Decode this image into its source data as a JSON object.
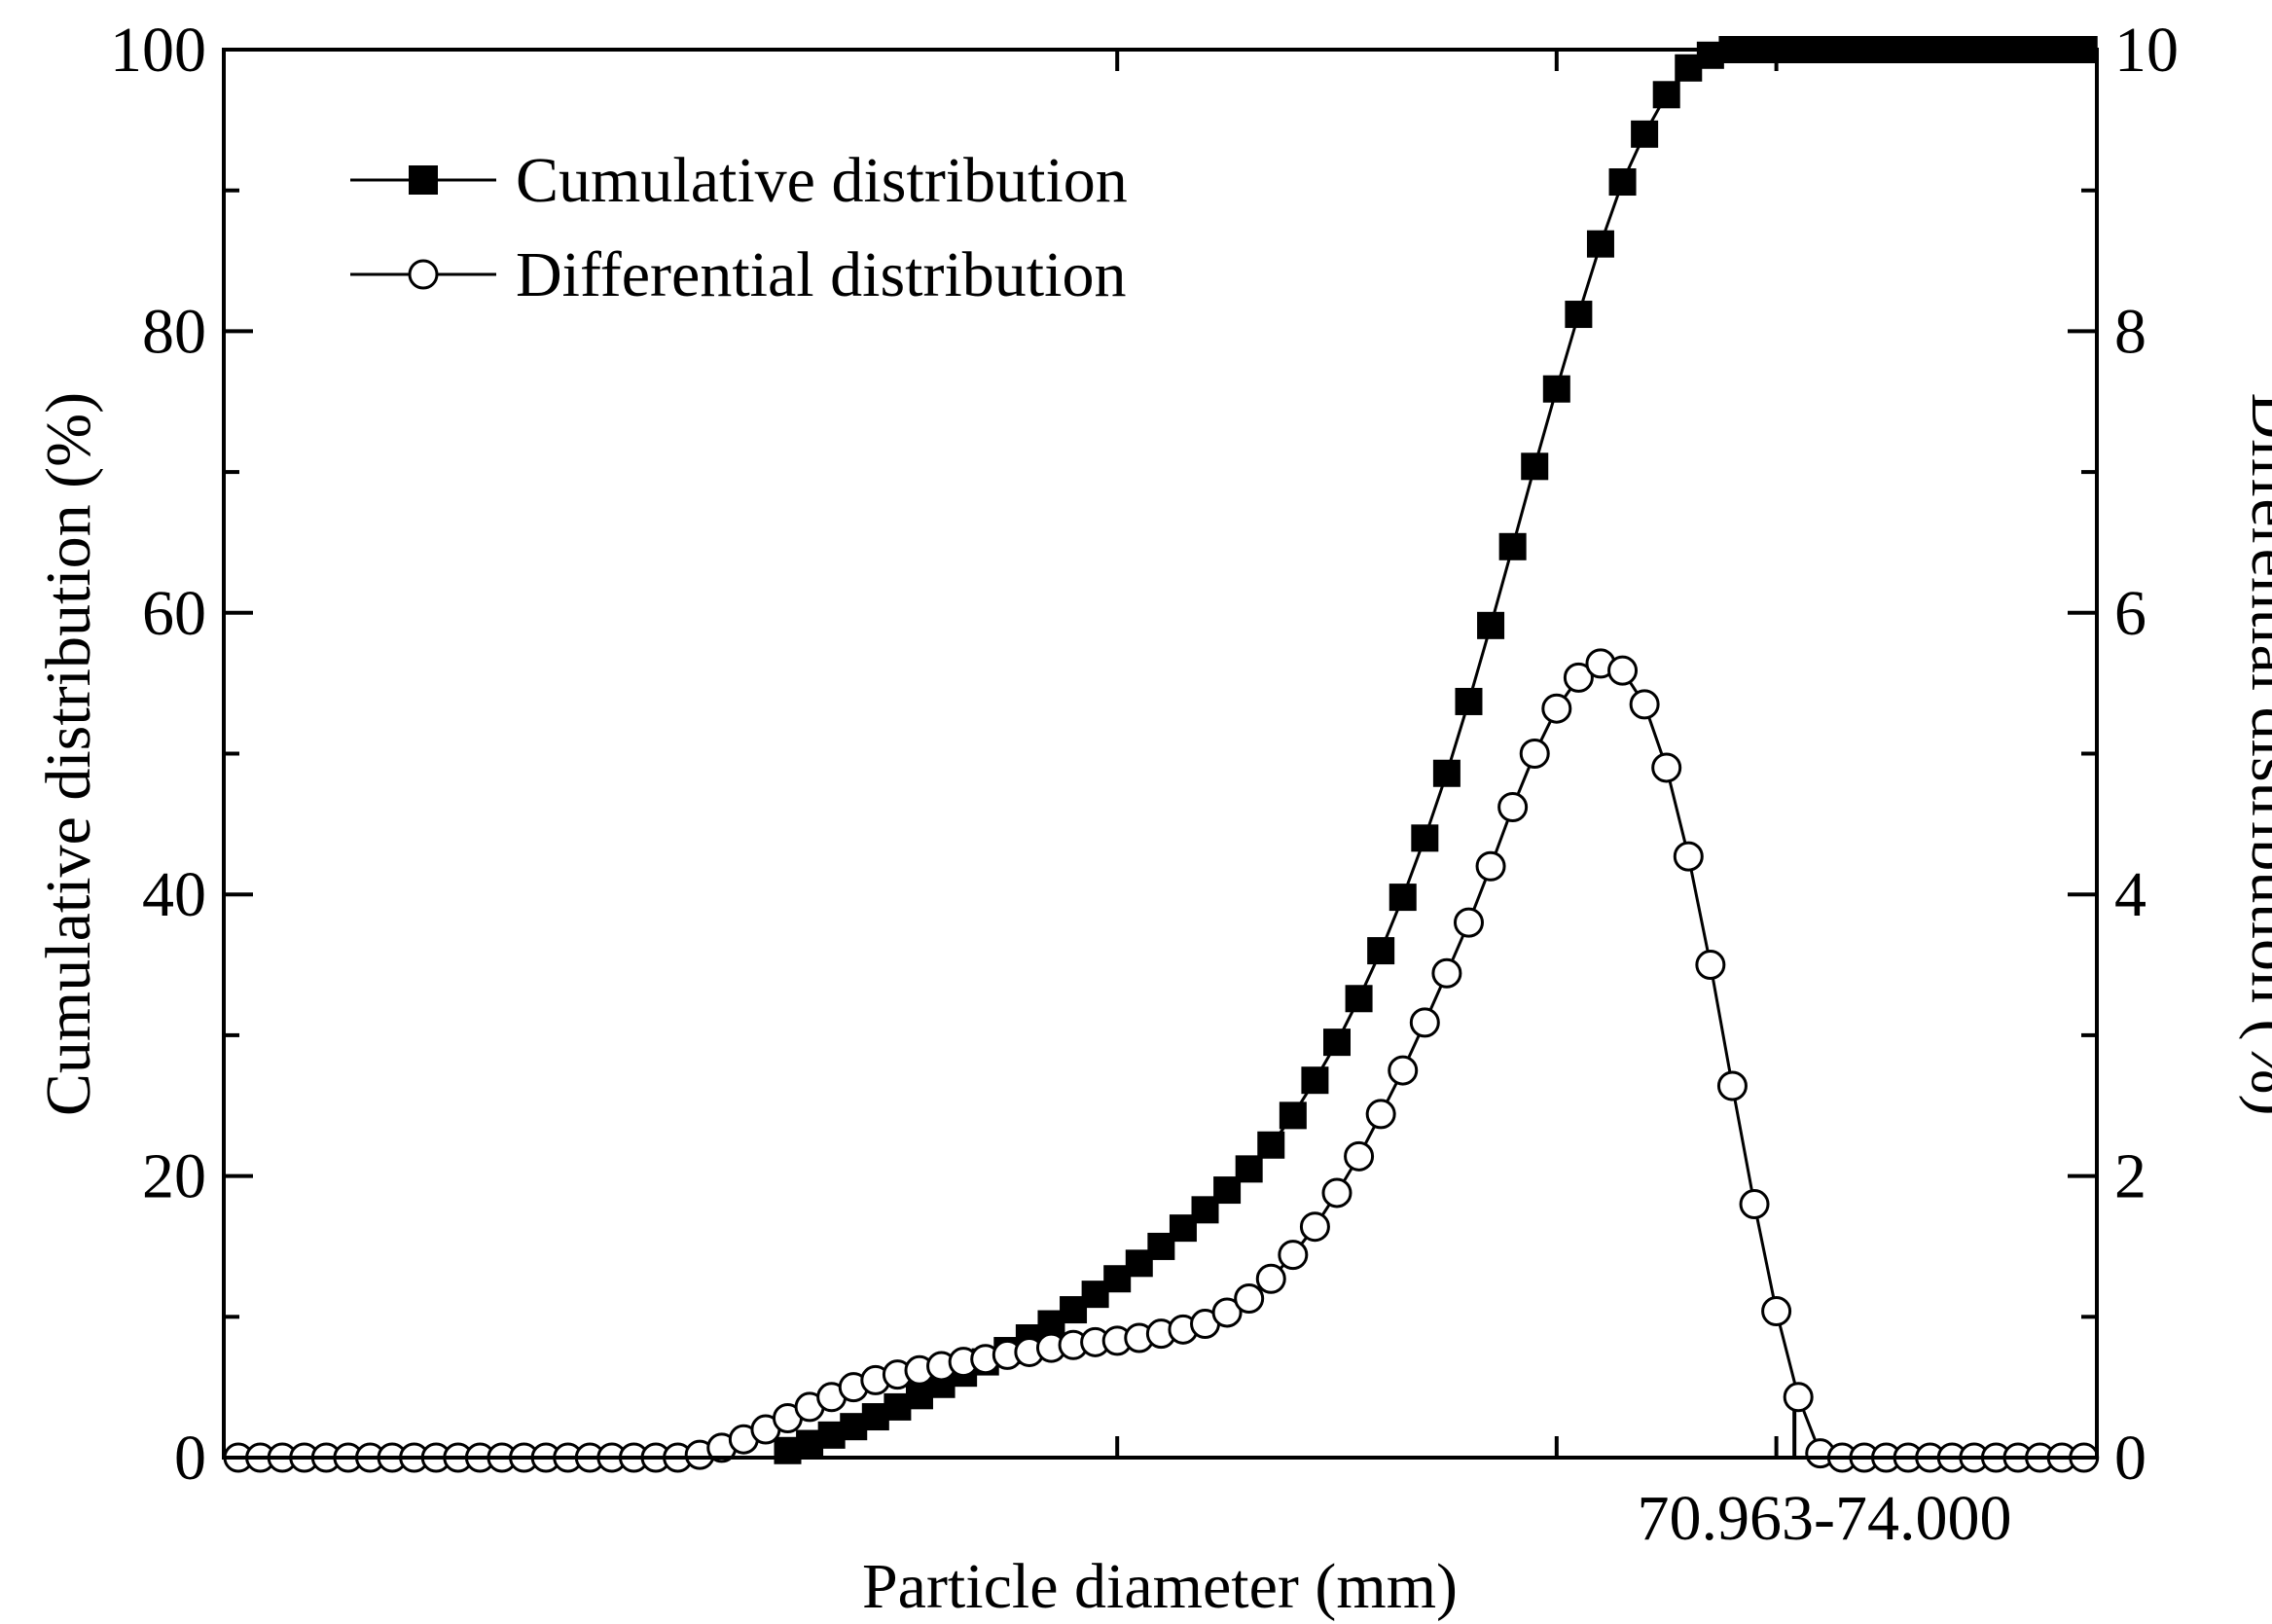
{
  "chart_data": {
    "type": "line",
    "xlabel": "Particle diameter (mm)",
    "ylabel_left": "Cumulative distribution (%)",
    "ylabel_right": "Differential distribution (%)",
    "ylim_left": [
      0,
      100
    ],
    "ylim_right": [
      0,
      10
    ],
    "yticks_left": [
      "0",
      "20",
      "40",
      "60",
      "80",
      "100"
    ],
    "yticks_right": [
      "0",
      "2",
      "4",
      "6",
      "8",
      "10"
    ],
    "x_index_range": [
      0,
      84
    ],
    "x_major_ticks_at_index": [
      40,
      60,
      70
    ],
    "annotation": {
      "text": "70.963-74.000",
      "at_index": 71
    },
    "legend": {
      "position": "top-left"
    },
    "series": [
      {
        "name": "Cumulative distribution",
        "axis": "left",
        "marker": "filled-square",
        "x": [
          25,
          26,
          27,
          28,
          29,
          30,
          31,
          32,
          33,
          34,
          35,
          36,
          37,
          38,
          39,
          40,
          41,
          42,
          43,
          44,
          45,
          46,
          47,
          48,
          49,
          50,
          51,
          52,
          53,
          54,
          55,
          56,
          57,
          58,
          59,
          60,
          61,
          62,
          63,
          64,
          65,
          66,
          67,
          68,
          69,
          70,
          71,
          72,
          73,
          74,
          75,
          76,
          77,
          78,
          79,
          80,
          81,
          82,
          83,
          84
        ],
        "values": [
          0.5,
          1.0,
          1.6,
          2.2,
          2.9,
          3.6,
          4.4,
          5.2,
          6.0,
          6.8,
          7.6,
          8.5,
          9.5,
          10.5,
          11.6,
          12.7,
          13.8,
          15.0,
          16.3,
          17.6,
          19.0,
          20.5,
          22.2,
          24.3,
          26.8,
          29.5,
          32.6,
          36.0,
          39.8,
          44.0,
          48.6,
          53.7,
          59.1,
          64.7,
          70.4,
          75.9,
          81.2,
          86.2,
          90.6,
          94.0,
          96.8,
          98.7,
          99.6,
          100,
          100,
          100,
          100,
          100,
          100,
          100,
          100,
          100,
          100,
          100,
          100,
          100,
          100,
          100,
          100,
          100
        ]
      },
      {
        "name": "Differential distribution",
        "axis": "right",
        "marker": "open-circle",
        "x": [
          0,
          1,
          2,
          3,
          4,
          5,
          6,
          7,
          8,
          9,
          10,
          11,
          12,
          13,
          14,
          15,
          16,
          17,
          18,
          19,
          20,
          21,
          22,
          23,
          24,
          25,
          26,
          27,
          28,
          29,
          30,
          31,
          32,
          33,
          34,
          35,
          36,
          37,
          38,
          39,
          40,
          41,
          42,
          43,
          44,
          45,
          46,
          47,
          48,
          49,
          50,
          51,
          52,
          53,
          54,
          55,
          56,
          57,
          58,
          59,
          60,
          61,
          62,
          63,
          64,
          65,
          66,
          67,
          68,
          69,
          70,
          71,
          72,
          73,
          74,
          75,
          76,
          77,
          78,
          79,
          80,
          81,
          82,
          83,
          84
        ],
        "values": [
          0,
          0,
          0,
          0,
          0,
          0,
          0,
          0,
          0,
          0,
          0,
          0,
          0,
          0,
          0,
          0,
          0,
          0,
          0,
          0,
          0,
          0.02,
          0.07,
          0.13,
          0.2,
          0.28,
          0.36,
          0.43,
          0.5,
          0.55,
          0.59,
          0.62,
          0.65,
          0.68,
          0.7,
          0.73,
          0.75,
          0.78,
          0.8,
          0.82,
          0.83,
          0.85,
          0.88,
          0.91,
          0.95,
          1.03,
          1.13,
          1.27,
          1.44,
          1.64,
          1.88,
          2.14,
          2.44,
          2.75,
          3.09,
          3.44,
          3.8,
          4.2,
          4.62,
          5.0,
          5.32,
          5.54,
          5.64,
          5.59,
          5.35,
          4.9,
          4.27,
          3.5,
          2.64,
          1.8,
          1.04,
          0.43,
          0.03,
          0,
          0,
          0,
          0,
          0,
          0,
          0,
          0,
          0,
          0,
          0,
          0
        ]
      }
    ]
  }
}
